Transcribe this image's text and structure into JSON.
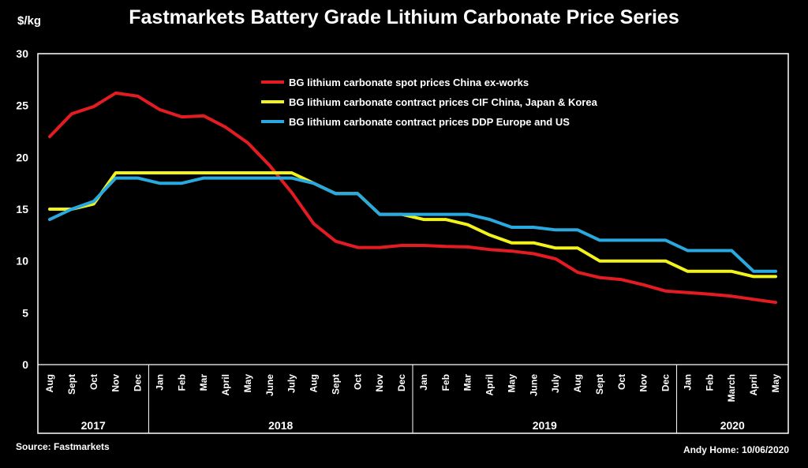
{
  "chart_data": {
    "type": "line",
    "title": "Fastmarkets Battery Grade Lithium Carbonate Price Series",
    "ylabel": "$/kg",
    "ylim": [
      0,
      30
    ],
    "yticks": [
      0,
      5,
      10,
      15,
      20,
      25,
      30
    ],
    "categories": [
      "Aug",
      "Sept",
      "Oct",
      "Nov",
      "Dec",
      "Jan",
      "Feb",
      "Mar",
      "April",
      "May",
      "June",
      "July",
      "Aug",
      "Sept",
      "Oct",
      "Nov",
      "Dec",
      "Jan",
      "Feb",
      "Mar",
      "April",
      "May",
      "June",
      "July",
      "Aug",
      "Sept",
      "Oct",
      "Nov",
      "Dec",
      "Jan",
      "Feb",
      "March",
      "April",
      "May"
    ],
    "year_groups": [
      {
        "label": "2017",
        "start": 0,
        "end": 4
      },
      {
        "label": "2018",
        "start": 5,
        "end": 16
      },
      {
        "label": "2019",
        "start": 17,
        "end": 28
      },
      {
        "label": "2020",
        "start": 29,
        "end": 33
      }
    ],
    "legend_position": "top-center",
    "grid": false,
    "series": [
      {
        "name": "BG lithium carbonate spot prices China ex-works",
        "color": "#e31b23",
        "values": [
          22.0,
          24.2,
          24.9,
          26.2,
          25.9,
          24.6,
          23.9,
          24.0,
          22.9,
          21.4,
          19.2,
          16.6,
          13.6,
          11.9,
          11.3,
          11.3,
          11.5,
          11.5,
          11.4,
          11.35,
          11.1,
          10.95,
          10.7,
          10.2,
          8.9,
          8.4,
          8.2,
          7.7,
          7.1,
          6.95,
          6.8,
          6.6,
          6.3,
          6.0
        ]
      },
      {
        "name": "BG lithium carbonate contract prices CIF China, Japan & Korea",
        "color": "#f2f21d",
        "values": [
          15.0,
          15.0,
          15.5,
          18.5,
          18.5,
          18.5,
          18.5,
          18.5,
          18.5,
          18.5,
          18.5,
          18.5,
          17.5,
          16.5,
          16.5,
          14.5,
          14.5,
          14.0,
          14.0,
          13.5,
          12.5,
          11.75,
          11.75,
          11.25,
          11.25,
          10.0,
          10.0,
          10.0,
          10.0,
          9.0,
          9.0,
          9.0,
          8.5,
          8.5
        ]
      },
      {
        "name": "BG lithium carbonate contract prices DDP Europe and US",
        "color": "#29a9e0",
        "values": [
          14.0,
          15.0,
          15.75,
          18.0,
          18.0,
          17.5,
          17.5,
          18.0,
          18.0,
          18.0,
          18.0,
          18.0,
          17.5,
          16.5,
          16.5,
          14.5,
          14.5,
          14.5,
          14.5,
          14.5,
          14.0,
          13.25,
          13.25,
          13.0,
          13.0,
          12.0,
          12.0,
          12.0,
          12.0,
          11.0,
          11.0,
          11.0,
          9.0,
          9.0
        ]
      }
    ]
  },
  "footer": {
    "source": "Source: Fastmarkets",
    "credit": "Andy Home: 10/06/2020"
  }
}
